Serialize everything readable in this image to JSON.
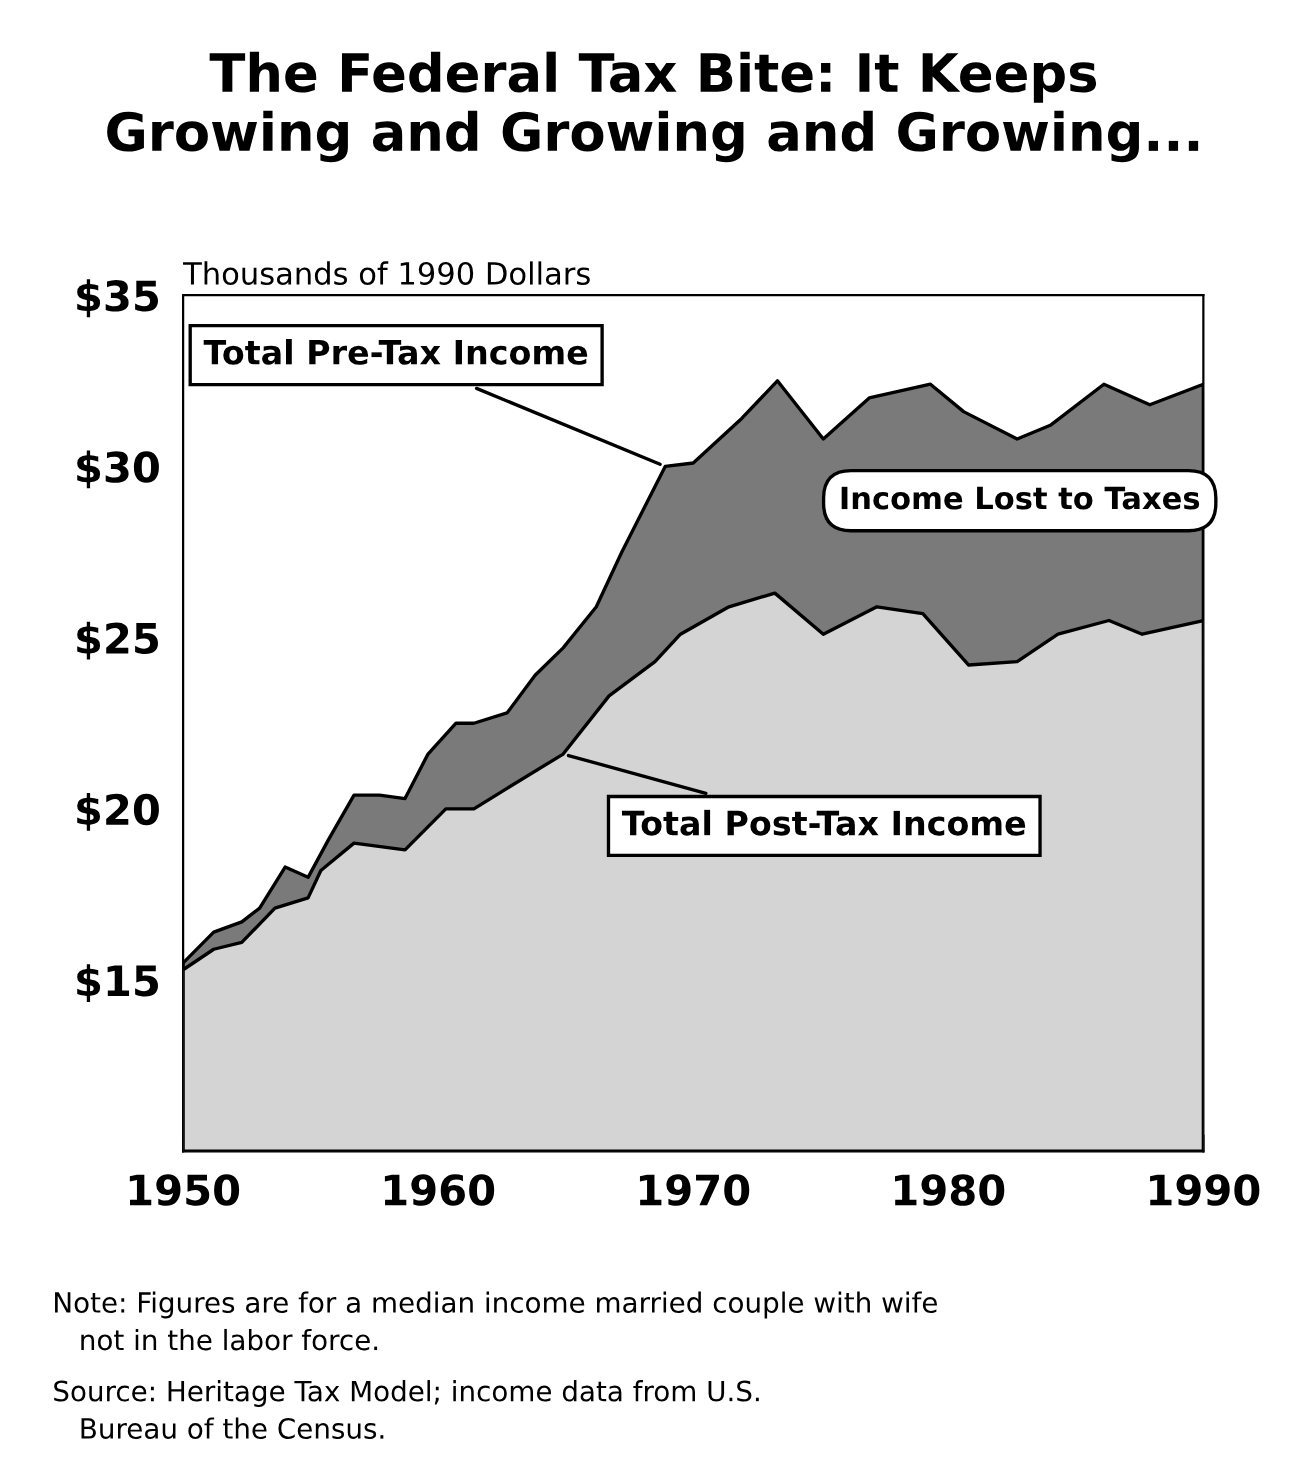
{
  "chart_data": {
    "type": "area",
    "title": "The Federal Tax Bite: It Keeps\nGrowing and Growing and Growing...",
    "ylabel": "Thousands of 1990 Dollars",
    "series": [
      {
        "color": "#7a7a7a",
        "x": [
          1950,
          1951.2,
          1952.3,
          1953,
          1954,
          1954.9,
          1955.7,
          1956.7,
          1957.7,
          1958.7,
          1959.6,
          1960.7,
          1961.4,
          1962.7,
          1963.8,
          1964.9,
          1966.2,
          1967.2,
          1968.9,
          1970,
          1971.9,
          1973.3,
          1975.1,
          1976.9,
          1979.3,
          1980.6,
          1982.7,
          1984,
          1986.1,
          1987.9,
          1990
        ],
        "values": [
          15.5,
          16.4,
          16.7,
          17.1,
          18.3,
          18.0,
          19.1,
          20.4,
          20.4,
          20.3,
          21.6,
          22.5,
          22.5,
          22.8,
          23.9,
          24.7,
          25.9,
          27.5,
          30.0,
          30.1,
          31.4,
          32.5,
          30.8,
          32.0,
          32.4,
          31.6,
          30.8,
          31.2,
          32.4,
          31.8,
          32.4
        ]
      },
      {
        "color": "#d4d4d4",
        "x": [
          1950,
          1951.2,
          1952.3,
          1953.6,
          1954.9,
          1955.4,
          1956.7,
          1958.7,
          1960.3,
          1961.4,
          1962.7,
          1964.9,
          1966.7,
          1968.5,
          1969.5,
          1971.4,
          1973.2,
          1975.1,
          1977.2,
          1979,
          1980.8,
          1982.7,
          1984.3,
          1986.3,
          1987.6,
          1990
        ],
        "values": [
          15.3,
          15.9,
          16.1,
          17.1,
          17.4,
          18.2,
          19.0,
          18.8,
          20.0,
          20.0,
          20.6,
          21.6,
          23.3,
          24.3,
          25.1,
          25.9,
          26.3,
          25.1,
          25.9,
          25.7,
          24.2,
          24.3,
          25.1,
          25.5,
          25.1,
          25.5
        ]
      }
    ],
    "annotations": [
      {
        "text": "Total Pre-Tax Income",
        "x": 1968.9,
        "y": 30.0
      },
      {
        "text": "Total Post-Tax Income",
        "x": 1964.9,
        "y": 21.6
      },
      "Income Lost to Taxes",
      "Note: Figures are for a median income married couple with wife\n   not in the labor force.",
      "Source: Heritage Tax Model; income data from U.S.\n   Bureau of the Census."
    ],
    "xlim": [
      1950,
      1990
    ],
    "xticks": [
      {
        "value": 1950,
        "label": "1950"
      },
      {
        "value": 1951,
        "label": null
      },
      {
        "value": 1952,
        "label": null
      },
      {
        "value": 1953,
        "label": null
      },
      {
        "value": 1954,
        "label": null
      },
      {
        "value": 1955,
        "label": null
      },
      {
        "value": 1956,
        "label": null
      },
      {
        "value": 1957,
        "label": null
      },
      {
        "value": 1958,
        "label": null
      },
      {
        "value": 1959,
        "label": null
      },
      {
        "value": 1960,
        "label": "1960"
      },
      {
        "value": 1961,
        "label": null
      },
      {
        "value": 1962,
        "label": null
      },
      {
        "value": 1963,
        "label": null
      },
      {
        "value": 1964,
        "label": null
      },
      {
        "value": 1965,
        "label": null
      },
      {
        "value": 1966,
        "label": null
      },
      {
        "value": 1967,
        "label": null
      },
      {
        "value": 1968,
        "label": null
      },
      {
        "value": 1969,
        "label": null
      },
      {
        "value": 1970,
        "label": "1970"
      },
      {
        "value": 1971,
        "label": null
      },
      {
        "value": 1972,
        "label": null
      },
      {
        "value": 1973,
        "label": null
      },
      {
        "value": 1974,
        "label": null
      },
      {
        "value": 1975,
        "label": null
      },
      {
        "value": 1976,
        "label": null
      },
      {
        "value": 1977,
        "label": null
      },
      {
        "value": 1978,
        "label": null
      },
      {
        "value": 1979,
        "label": null
      },
      {
        "value": 1980,
        "label": "1980"
      },
      {
        "value": 1981,
        "label": null
      },
      {
        "value": 1982,
        "label": null
      },
      {
        "value": 1983,
        "label": null
      },
      {
        "value": 1984,
        "label": null
      },
      {
        "value": 1985,
        "label": null
      },
      {
        "value": 1986,
        "label": null
      },
      {
        "value": 1987,
        "label": null
      },
      {
        "value": 1988,
        "label": null
      },
      {
        "value": 1989,
        "label": null
      },
      {
        "value": 1990,
        "label": "1990"
      }
    ],
    "ylim": [
      10,
      35
    ],
    "yticks": [
      {
        "value": 15,
        "label": "$15"
      },
      {
        "value": 20,
        "label": "$20"
      },
      {
        "value": 25,
        "label": "$25"
      },
      {
        "value": 30,
        "label": "$30"
      },
      {
        "value": 35,
        "label": "$35"
      }
    ],
    "grid": false
  }
}
